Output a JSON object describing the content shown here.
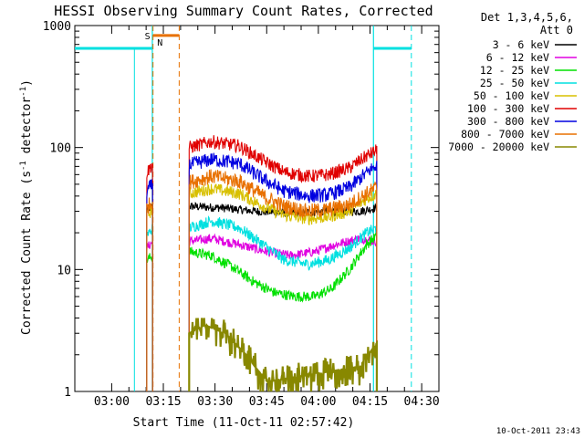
{
  "chart_data": {
    "type": "line",
    "title": "HESSI Observing Summary Count Rates, Corrected",
    "xlabel": "Start Time (11-Oct-11 02:57:42)",
    "ylabel": "Corrected Count Rate (s",
    "ylabel_sup1": "-1",
    "ylabel_mid": " detector",
    "ylabel_sup2": "-1",
    "ylabel_end": ")",
    "y_scale": "log",
    "ylim": [
      1,
      1000
    ],
    "xlim_minutes_since_0257": [
      -7.7,
      98
    ],
    "x_ticks": [
      "03:00",
      "03:15",
      "03:30",
      "03:45",
      "04:00",
      "04:15",
      "04:30"
    ],
    "y_ticks": [
      "1",
      "10",
      "100",
      "1000"
    ],
    "grid": false,
    "legend_header": [
      "Det 1,3,4,5,6,",
      "Att 0"
    ],
    "legend_position": "right",
    "timestamp": "10-Oct-2011 23:43",
    "colors": {
      "saa": "#00e0e0",
      "flag_s": "#e87000",
      "axis": "#000000"
    },
    "flags": {
      "S": {
        "label": "S",
        "color": "#e87000"
      },
      "N": {
        "label": "N",
        "color": "#00e0e0"
      }
    },
    "series": [
      {
        "name": "3 - 6 keV",
        "color": "#000000",
        "points": [
          [
            13.2,
            31
          ],
          [
            15.0,
            33
          ],
          [
            25.5,
            33
          ],
          [
            35,
            32
          ],
          [
            45,
            30
          ],
          [
            55,
            29
          ],
          [
            65,
            30
          ],
          [
            75,
            30
          ],
          [
            80,
            32
          ]
        ]
      },
      {
        "name": "6 - 12 keV",
        "color": "#e000e0",
        "points": [
          [
            13.2,
            15
          ],
          [
            15.0,
            17
          ],
          [
            25.5,
            17
          ],
          [
            32,
            18
          ],
          [
            40,
            16
          ],
          [
            48,
            14
          ],
          [
            55,
            13
          ],
          [
            62,
            14
          ],
          [
            68,
            16
          ],
          [
            75,
            18
          ],
          [
            80,
            17
          ]
        ]
      },
      {
        "name": "12 - 25 keV",
        "color": "#00e000",
        "points": [
          [
            13.2,
            12
          ],
          [
            15.0,
            13
          ],
          [
            25.5,
            14
          ],
          [
            32,
            13
          ],
          [
            38,
            10.5
          ],
          [
            44,
            8
          ],
          [
            50,
            6.5
          ],
          [
            56,
            6
          ],
          [
            62,
            6
          ],
          [
            67,
            7
          ],
          [
            72,
            10
          ],
          [
            77,
            16
          ],
          [
            80,
            19
          ]
        ]
      },
      {
        "name": "25 - 50 keV",
        "color": "#00e0e0",
        "points": [
          [
            13.2,
            19
          ],
          [
            15.0,
            22
          ],
          [
            25.5,
            22
          ],
          [
            32,
            25
          ],
          [
            40,
            22
          ],
          [
            47,
            16
          ],
          [
            53,
            12
          ],
          [
            60,
            11
          ],
          [
            66,
            12
          ],
          [
            72,
            15
          ],
          [
            77,
            20
          ],
          [
            80,
            22
          ]
        ]
      },
      {
        "name": "50 - 100 keV",
        "color": "#d8c000",
        "points": [
          [
            13.2,
            27
          ],
          [
            15.0,
            32
          ],
          [
            25.5,
            42
          ],
          [
            32,
            46
          ],
          [
            40,
            42
          ],
          [
            47,
            33
          ],
          [
            53,
            28
          ],
          [
            60,
            26
          ],
          [
            66,
            27
          ],
          [
            72,
            30
          ],
          [
            77,
            38
          ],
          [
            80,
            42
          ]
        ]
      },
      {
        "name": "100 - 300 keV",
        "color": "#e00000",
        "points": [
          [
            13.2,
            62
          ],
          [
            15.0,
            75
          ],
          [
            25.5,
            100
          ],
          [
            32,
            112
          ],
          [
            40,
            103
          ],
          [
            47,
            78
          ],
          [
            53,
            63
          ],
          [
            60,
            58
          ],
          [
            66,
            60
          ],
          [
            72,
            68
          ],
          [
            77,
            85
          ],
          [
            80,
            95
          ]
        ]
      },
      {
        "name": "300 - 800 keV",
        "color": "#0000e0",
        "points": [
          [
            13.2,
            44
          ],
          [
            15.0,
            50
          ],
          [
            25.5,
            72
          ],
          [
            32,
            80
          ],
          [
            40,
            74
          ],
          [
            47,
            55
          ],
          [
            53,
            44
          ],
          [
            60,
            40
          ],
          [
            66,
            41
          ],
          [
            72,
            47
          ],
          [
            77,
            62
          ],
          [
            80,
            72
          ]
        ]
      },
      {
        "name": "800 - 7000 keV",
        "color": "#e87000",
        "points": [
          [
            13.2,
            32
          ],
          [
            15.0,
            37
          ],
          [
            25.5,
            52
          ],
          [
            32,
            58
          ],
          [
            40,
            53
          ],
          [
            47,
            40
          ],
          [
            53,
            33
          ],
          [
            60,
            30
          ],
          [
            66,
            31
          ],
          [
            72,
            34
          ],
          [
            77,
            42
          ],
          [
            80,
            47
          ]
        ]
      },
      {
        "name": "7000 - 20000 keV",
        "color": "#888800",
        "points": [
          [
            25.5,
            3
          ],
          [
            30,
            3.5
          ],
          [
            36,
            3
          ],
          [
            42,
            2
          ],
          [
            48,
            1.2
          ],
          [
            75,
            1.6
          ],
          [
            80,
            2.5
          ]
        ]
      }
    ]
  }
}
